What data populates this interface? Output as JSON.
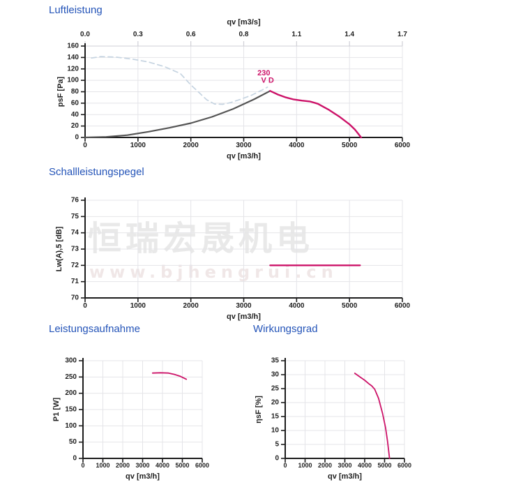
{
  "page": {
    "background": "#ffffff"
  },
  "colors": {
    "title_blue": "#2454b8",
    "accent_magenta": "#cc1268",
    "curve_gray": "#545454",
    "dashed_light_blue": "#c6d4e1",
    "grid": "#e4e4e8",
    "axis": "#1c1c1c",
    "watermark_gray": "#e9e9e9"
  },
  "sections": [
    {
      "title": "Luftleistung"
    },
    {
      "title": "Schallleistungspegel"
    },
    {
      "title": "Leistungsaufnahme"
    },
    {
      "title": "Wirkungsgrad"
    }
  ],
  "watermark": {
    "line1": "恒瑞宏晟机电",
    "line2": "www.bjhengrui.cn"
  },
  "chart_data": [
    {
      "id": "luftleistung",
      "type": "line",
      "title": "Luftleistung",
      "xlabel": "qv [m3/h]",
      "ylabel": "psF [Pa]",
      "xlim": [
        0,
        6000
      ],
      "ylim": [
        0,
        160
      ],
      "xticks": [
        0,
        1000,
        2000,
        3000,
        4000,
        5000,
        6000
      ],
      "yticks": [
        0,
        20,
        40,
        60,
        80,
        100,
        120,
        140,
        160
      ],
      "grid": true,
      "legend": false,
      "top_axis": {
        "label": "qv [m3/s]",
        "tick_labels": [
          "0.0",
          "0.3",
          "0.6",
          "0.8",
          "1.1",
          "1.4",
          "1.7"
        ]
      },
      "series": [
        {
          "name": "system-curve-dashed",
          "color": "#c6d4e1",
          "width": 1.7,
          "dash": "7 5",
          "points": [
            [
              120,
              139
            ],
            [
              300,
              141.5
            ],
            [
              600,
              140.5
            ],
            [
              900,
              137
            ],
            [
              1200,
              132
            ],
            [
              1500,
              124
            ],
            [
              1800,
              112
            ],
            [
              2000,
              92
            ],
            [
              2150,
              79
            ],
            [
              2300,
              66
            ],
            [
              2450,
              58.5
            ],
            [
              2600,
              58
            ],
            [
              2750,
              61
            ],
            [
              2950,
              67
            ],
            [
              3150,
              74
            ],
            [
              3350,
              83
            ],
            [
              3450,
              88
            ]
          ]
        },
        {
          "name": "reference-curve",
          "color": "#545454",
          "width": 2.2,
          "dash": null,
          "points": [
            [
              0,
              0
            ],
            [
              400,
              1
            ],
            [
              800,
              4
            ],
            [
              1200,
              10
            ],
            [
              1600,
              17
            ],
            [
              2000,
              25
            ],
            [
              2400,
              36
            ],
            [
              2800,
              50
            ],
            [
              3200,
              67
            ],
            [
              3500,
              81.5
            ]
          ]
        },
        {
          "name": "operating-curve-230VD",
          "color": "#cc1268",
          "width": 2.4,
          "dash": null,
          "points": [
            [
              3500,
              81.5
            ],
            [
              3650,
              75
            ],
            [
              3800,
              70
            ],
            [
              3950,
              66.5
            ],
            [
              4100,
              64.5
            ],
            [
              4250,
              63
            ],
            [
              4400,
              59
            ],
            [
              4600,
              49
            ],
            [
              4800,
              37
            ],
            [
              5000,
              23
            ],
            [
              5100,
              14
            ],
            [
              5220,
              0
            ]
          ]
        }
      ],
      "annotations": [
        {
          "text": "230",
          "x": 3380,
          "y": 109,
          "color": "#cc1268"
        },
        {
          "text": "V D",
          "x": 3450,
          "y": 96,
          "color": "#cc1268"
        }
      ]
    },
    {
      "id": "schallleistungspegel",
      "type": "line",
      "title": "Schallleistungspegel",
      "xlabel": "qv [m3/h]",
      "ylabel": "Lw(A),5 [dB]",
      "xlim": [
        0,
        6000
      ],
      "ylim": [
        70,
        76
      ],
      "xticks": [
        0,
        1000,
        2000,
        3000,
        4000,
        5000,
        6000
      ],
      "yticks": [
        70,
        71,
        72,
        73,
        74,
        75,
        76
      ],
      "grid": true,
      "legend": false,
      "series": [
        {
          "name": "sound-power-level",
          "color": "#cc1268",
          "width": 2.4,
          "dash": null,
          "points": [
            [
              3500,
              72
            ],
            [
              5200,
              72
            ]
          ]
        }
      ],
      "annotations": []
    },
    {
      "id": "leistungsaufnahme",
      "type": "line",
      "title": "Leistungsaufnahme",
      "xlabel": "qv [m3/h]",
      "ylabel": "P1 [W]",
      "xlim": [
        0,
        6000
      ],
      "ylim": [
        0,
        300
      ],
      "xticks": [
        0,
        1000,
        2000,
        3000,
        4000,
        5000,
        6000
      ],
      "yticks": [
        0,
        50,
        100,
        150,
        200,
        250,
        300
      ],
      "grid": true,
      "legend": false,
      "series": [
        {
          "name": "power-input",
          "color": "#cc1268",
          "width": 1.8,
          "dash": null,
          "points": [
            [
              3500,
              262
            ],
            [
              3900,
              263
            ],
            [
              4300,
              262
            ],
            [
              4600,
              258
            ],
            [
              4900,
              252
            ],
            [
              5200,
              243
            ]
          ]
        }
      ],
      "annotations": []
    },
    {
      "id": "wirkungsgrad",
      "type": "line",
      "title": "Wirkungsgrad",
      "xlabel": "qv [m3/h]",
      "ylabel": "ηsF [%]",
      "xlim": [
        0,
        6000
      ],
      "ylim": [
        0,
        35
      ],
      "xticks": [
        0,
        1000,
        2000,
        3000,
        4000,
        5000,
        6000
      ],
      "yticks": [
        0,
        5,
        10,
        15,
        20,
        25,
        30,
        35
      ],
      "grid": true,
      "legend": false,
      "series": [
        {
          "name": "efficiency",
          "color": "#cc1268",
          "width": 1.8,
          "dash": null,
          "points": [
            [
              3500,
              30.5
            ],
            [
              3700,
              29.5
            ],
            [
              4000,
              28
            ],
            [
              4200,
              26.8
            ],
            [
              4350,
              26
            ],
            [
              4500,
              24.8
            ],
            [
              4700,
              21.5
            ],
            [
              4900,
              16
            ],
            [
              5050,
              11
            ],
            [
              5150,
              6
            ],
            [
              5250,
              0
            ]
          ]
        }
      ],
      "annotations": []
    }
  ]
}
